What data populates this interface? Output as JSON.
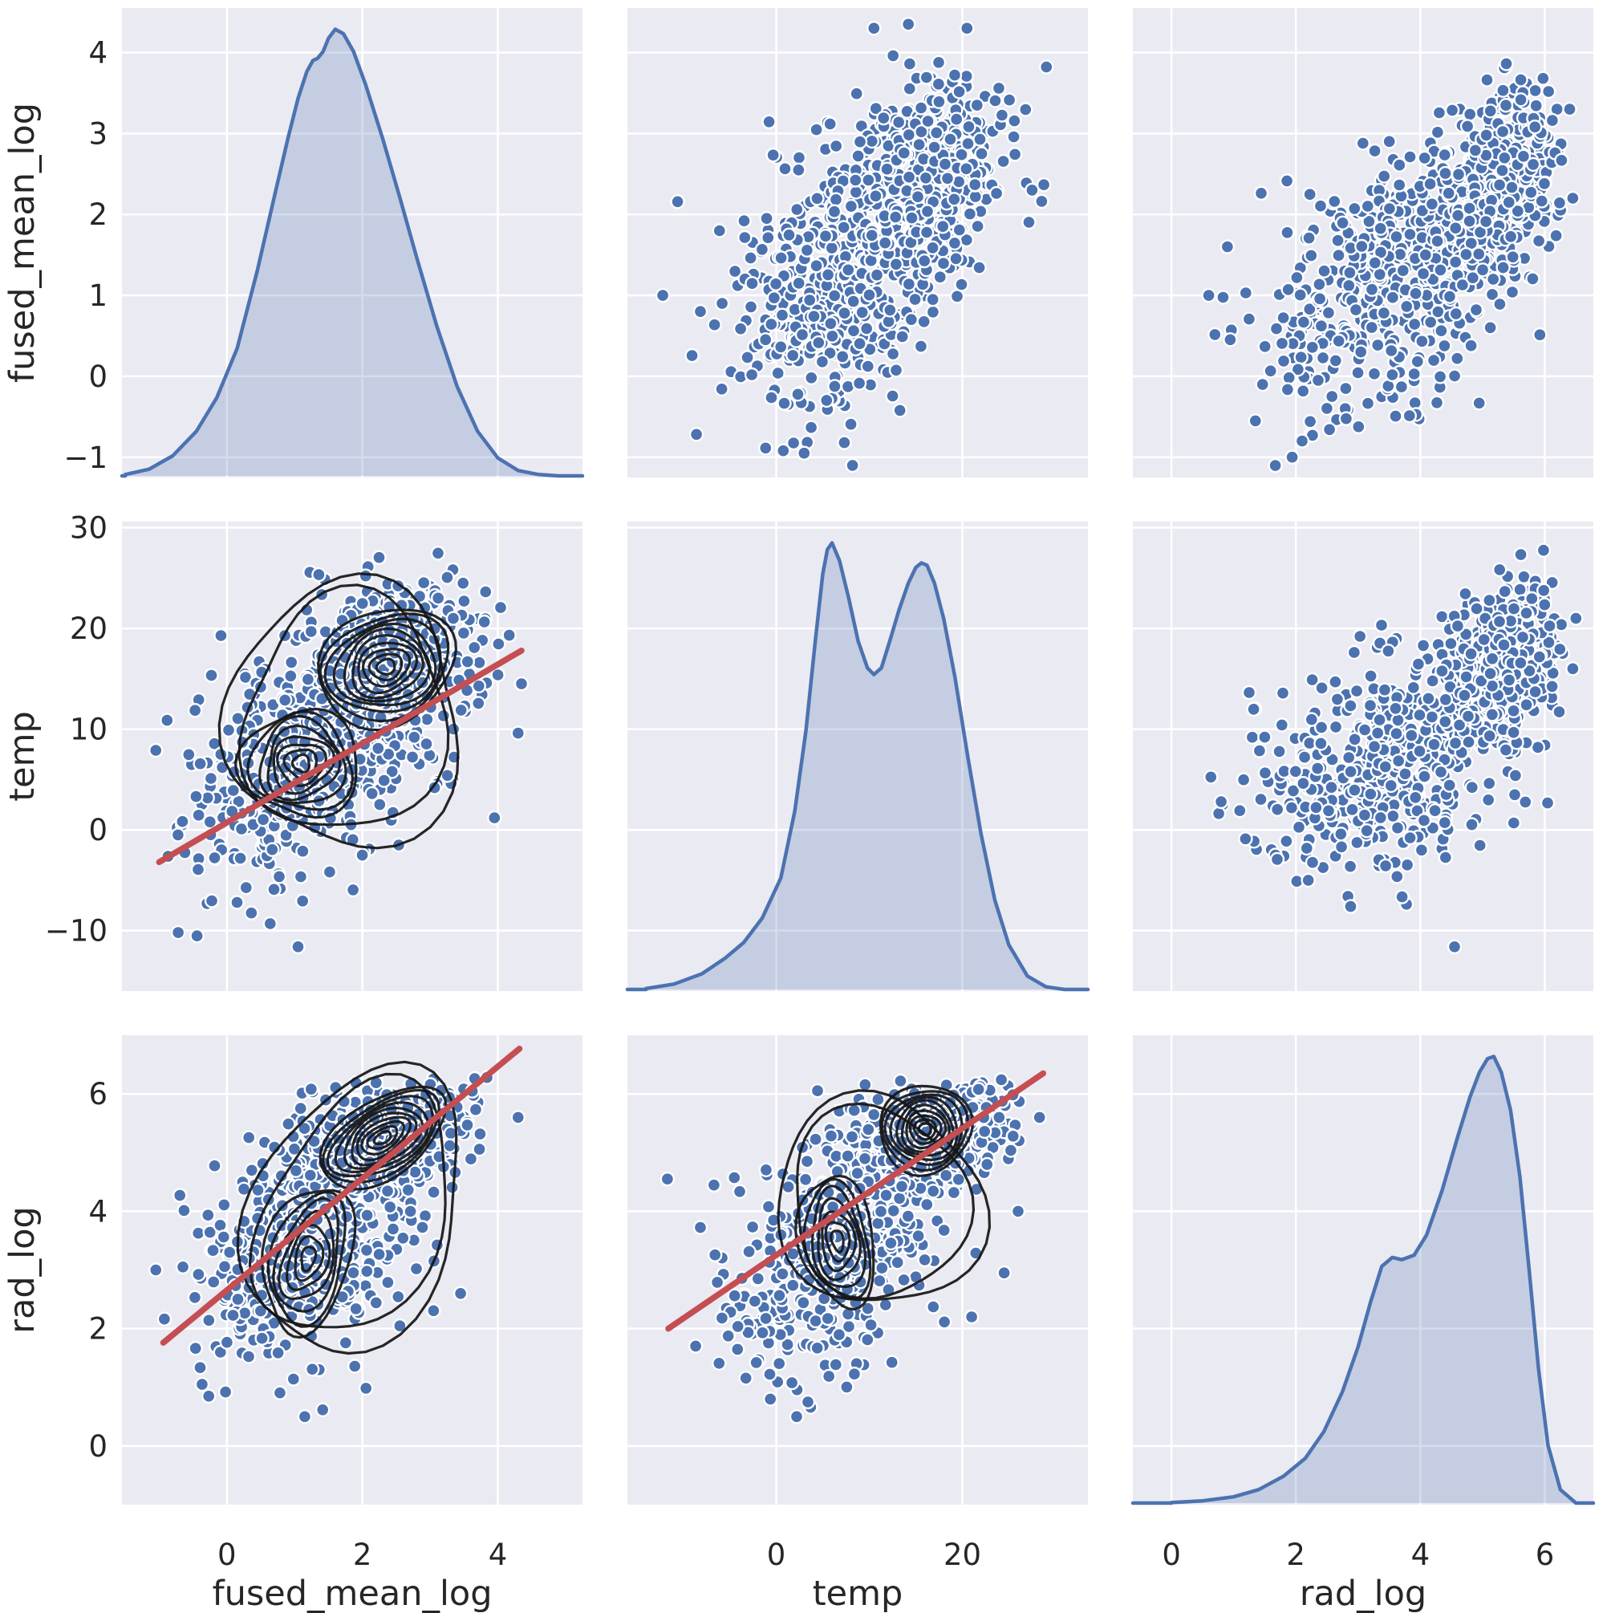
{
  "style": {
    "figure_background": "#ffffff",
    "panel_background": "#eaeaf2",
    "gridline_color": "#ffffff",
    "point_fill": "#4c72b0",
    "point_edge": "#ffffff",
    "kde_line_color": "#4c72b0",
    "kde_fill_color": "#4c72b0",
    "kde_fill_opacity": 0.24,
    "contour_color": "#151515",
    "regression_color": "#c44e52",
    "text_color": "#262626"
  },
  "chart_data": {
    "type": "scatter",
    "subtype": "seaborn-pairplot-matrix",
    "grid": "on",
    "legend": "none",
    "variables": [
      {
        "label": "fused_mean_log",
        "xlim": [
          -1.55,
          5.25
        ],
        "ylim": [
          -1.25,
          4.55
        ],
        "xtick_values": [
          0,
          2,
          4
        ],
        "xtick_labels": [
          "0",
          "2",
          "4"
        ],
        "ytick_values": [
          -1,
          0,
          1,
          2,
          3,
          4
        ],
        "ytick_labels": [
          "−1",
          "0",
          "1",
          "2",
          "3",
          "4"
        ],
        "clip": [
          -1.12,
          4.45
        ],
        "kde": {
          "x": [
            -1.5,
            -1.15,
            -0.8,
            -0.45,
            -0.15,
            0.15,
            0.45,
            0.7,
            0.9,
            1.05,
            1.18,
            1.27,
            1.34,
            1.42,
            1.5,
            1.6,
            1.72,
            1.87,
            2.05,
            2.3,
            2.55,
            2.8,
            3.1,
            3.4,
            3.7,
            4.0,
            4.3,
            4.6,
            4.9
          ],
          "density": [
            0.003,
            0.015,
            0.045,
            0.1,
            0.175,
            0.285,
            0.46,
            0.625,
            0.755,
            0.845,
            0.905,
            0.93,
            0.935,
            0.95,
            0.98,
            1.0,
            0.99,
            0.95,
            0.875,
            0.755,
            0.625,
            0.49,
            0.335,
            0.2,
            0.1,
            0.04,
            0.012,
            0.003,
            0.0
          ]
        }
      },
      {
        "label": "temp",
        "xlim": [
          -16.0,
          33.5
        ],
        "ylim": [
          -16.0,
          30.6
        ],
        "xtick_values": [
          0,
          20
        ],
        "xtick_labels": [
          "0",
          "20"
        ],
        "ytick_values": [
          -10,
          0,
          10,
          20,
          30
        ],
        "ytick_labels": [
          "−10",
          "0",
          "10",
          "20",
          "30"
        ],
        "clip": [
          -12.4,
          29.2
        ],
        "kde": {
          "x": [
            -14,
            -11,
            -8,
            -5.5,
            -3.5,
            -1.5,
            0.5,
            2,
            3.2,
            4.2,
            5,
            5.5,
            6,
            6.8,
            7.8,
            8.8,
            9.8,
            10.5,
            11.3,
            12.2,
            13.2,
            14.2,
            15,
            15.6,
            16.2,
            17,
            18,
            19.2,
            20.6,
            22,
            23.5,
            25,
            27,
            29,
            31
          ],
          "density": [
            0.002,
            0.012,
            0.035,
            0.07,
            0.105,
            0.16,
            0.25,
            0.4,
            0.58,
            0.78,
            0.93,
            0.985,
            1.0,
            0.96,
            0.875,
            0.78,
            0.72,
            0.705,
            0.72,
            0.78,
            0.85,
            0.91,
            0.945,
            0.955,
            0.95,
            0.91,
            0.83,
            0.7,
            0.52,
            0.35,
            0.2,
            0.1,
            0.03,
            0.006,
            0.0
          ]
        }
      },
      {
        "label": "rad_log",
        "xlim": [
          -0.62,
          6.78
        ],
        "ylim": [
          -1.0,
          7.0
        ],
        "xtick_values": [
          0,
          2,
          4,
          6
        ],
        "xtick_labels": [
          "0",
          "2",
          "4",
          "6"
        ],
        "ytick_values": [
          0,
          2,
          4,
          6
        ],
        "ytick_labels": [
          "0",
          "2",
          "4",
          "6"
        ],
        "clip": [
          0.45,
          6.3
        ],
        "kde": {
          "x": [
            0.0,
            0.5,
            1.0,
            1.4,
            1.8,
            2.15,
            2.45,
            2.75,
            3.0,
            3.2,
            3.38,
            3.55,
            3.7,
            3.9,
            4.1,
            4.35,
            4.6,
            4.8,
            4.95,
            5.08,
            5.18,
            5.3,
            5.45,
            5.6,
            5.75,
            5.9,
            6.05,
            6.25,
            6.5
          ],
          "density": [
            0.001,
            0.005,
            0.014,
            0.03,
            0.06,
            0.1,
            0.16,
            0.25,
            0.35,
            0.45,
            0.53,
            0.55,
            0.545,
            0.555,
            0.6,
            0.7,
            0.82,
            0.91,
            0.965,
            0.995,
            1.0,
            0.965,
            0.88,
            0.73,
            0.52,
            0.3,
            0.13,
            0.03,
            0.0
          ]
        }
      }
    ],
    "panels": [
      {
        "row": 0,
        "col": 0,
        "kind": "kde"
      },
      {
        "row": 0,
        "col": 1,
        "kind": "scatter",
        "clusters": [
          {
            "n": 460,
            "mean": [
              6.0,
              1.15
            ],
            "std": [
              5.6,
              0.8
            ],
            "corr": 0.25
          },
          {
            "n": 460,
            "mean": [
              15.8,
              2.4
            ],
            "std": [
              4.2,
              0.62
            ],
            "corr": 0.2
          }
        ],
        "outliers": [
          [
            -12.2,
            1.0
          ],
          [
            27.5,
            2.3
          ],
          [
            8.2,
            -1.1
          ],
          [
            3.0,
            -0.95
          ],
          [
            10.5,
            4.3
          ],
          [
            14.2,
            4.35
          ],
          [
            20.5,
            4.3
          ]
        ]
      },
      {
        "row": 0,
        "col": 2,
        "kind": "scatter",
        "clusters": [
          {
            "n": 460,
            "mean": [
              3.45,
              1.15
            ],
            "std": [
              1.0,
              0.8
            ],
            "corr": 0.35
          },
          {
            "n": 460,
            "mean": [
              5.2,
              2.4
            ],
            "std": [
              0.5,
              0.62
            ],
            "corr": 0.3
          }
        ],
        "outliers": [
          [
            0.6,
            1.0
          ],
          [
            1.35,
            -0.55
          ],
          [
            2.1,
            -0.8
          ],
          [
            6.45,
            2.2
          ],
          [
            6.4,
            3.3
          ],
          [
            0.9,
            1.6
          ]
        ]
      },
      {
        "row": 1,
        "col": 0,
        "kind": "scatter",
        "clusters": [
          {
            "n": 460,
            "mean": [
              1.15,
              6.0
            ],
            "std": [
              0.8,
              5.6
            ],
            "corr": 0.25
          },
          {
            "n": 460,
            "mean": [
              2.4,
              15.8
            ],
            "std": [
              0.62,
              4.2
            ],
            "corr": 0.2
          }
        ],
        "outliers": [
          [
            1.05,
            -11.6
          ],
          [
            -1.05,
            7.9
          ],
          [
            0.15,
            -7.2
          ],
          [
            3.95,
            1.2
          ],
          [
            4.3,
            9.6
          ],
          [
            4.35,
            14.5
          ]
        ],
        "contours": [
          {
            "center": [
              1.75,
              11.3
            ],
            "rx": 1.75,
            "ry": 13.0,
            "rot": 18,
            "rings": 2,
            "min_scale": 0.88,
            "wobble": 0.1
          },
          {
            "center": [
              2.35,
              16.2
            ],
            "rx": 1.05,
            "ry": 5.6,
            "rot": -20,
            "rings": 10,
            "min_scale": 0.13,
            "wobble": 0.06
          },
          {
            "center": [
              1.1,
              6.6
            ],
            "rx": 0.85,
            "ry": 5.4,
            "rot": -12,
            "rings": 8,
            "min_scale": 0.15,
            "wobble": 0.1
          }
        ],
        "regression": [
          [
            -1.0,
            -3.2
          ],
          [
            4.35,
            17.8
          ]
        ]
      },
      {
        "row": 1,
        "col": 1,
        "kind": "kde"
      },
      {
        "row": 1,
        "col": 2,
        "kind": "scatter",
        "clusters": [
          {
            "n": 460,
            "mean": [
              3.45,
              6.0
            ],
            "std": [
              1.0,
              5.6
            ],
            "corr": 0.3
          },
          {
            "n": 460,
            "mean": [
              5.2,
              15.8
            ],
            "std": [
              0.5,
              4.2
            ],
            "corr": 0.35
          }
        ],
        "outliers": [
          [
            4.55,
            -11.6
          ],
          [
            0.8,
            2.8
          ],
          [
            1.5,
            9.2
          ],
          [
            6.45,
            16.0
          ],
          [
            6.5,
            21.0
          ],
          [
            2.2,
            -5.0
          ]
        ]
      },
      {
        "row": 2,
        "col": 0,
        "kind": "scatter",
        "clusters": [
          {
            "n": 460,
            "mean": [
              1.15,
              3.45
            ],
            "std": [
              0.8,
              1.0
            ],
            "corr": 0.4
          },
          {
            "n": 460,
            "mean": [
              2.4,
              5.2
            ],
            "std": [
              0.62,
              0.5
            ],
            "corr": 0.3
          }
        ],
        "outliers": [
          [
            -0.02,
            0.92
          ],
          [
            1.15,
            0.5
          ],
          [
            -0.65,
            3.05
          ],
          [
            3.45,
            2.6
          ],
          [
            4.3,
            5.6
          ],
          [
            -1.05,
            3.0
          ]
        ],
        "contours": [
          {
            "center": [
              1.9,
              4.0
            ],
            "rx": 1.5,
            "ry": 2.5,
            "rot": 28,
            "rings": 2,
            "min_scale": 0.88,
            "wobble": 0.09
          },
          {
            "center": [
              2.3,
              5.25
            ],
            "rx": 1.05,
            "ry": 0.65,
            "rot": -32,
            "rings": 10,
            "min_scale": 0.13,
            "wobble": 0.05
          },
          {
            "center": [
              1.2,
              3.2
            ],
            "rx": 0.62,
            "ry": 1.3,
            "rot": 16,
            "rings": 7,
            "min_scale": 0.16,
            "wobble": 0.09
          }
        ],
        "regression": [
          [
            -0.94,
            1.76
          ],
          [
            4.32,
            6.77
          ]
        ]
      },
      {
        "row": 2,
        "col": 1,
        "kind": "scatter",
        "clusters": [
          {
            "n": 460,
            "mean": [
              6.0,
              3.45
            ],
            "std": [
              5.6,
              1.0
            ],
            "corr": 0.35
          },
          {
            "n": 460,
            "mean": [
              15.8,
              5.2
            ],
            "std": [
              4.2,
              0.5
            ],
            "corr": 0.4
          }
        ],
        "outliers": [
          [
            -11.7,
            4.55
          ],
          [
            2.2,
            0.5
          ],
          [
            3.4,
            0.75
          ],
          [
            28.3,
            5.6
          ],
          [
            24.5,
            2.95
          ],
          [
            21.0,
            2.2
          ],
          [
            26.0,
            4.0
          ]
        ],
        "contours": [
          {
            "center": [
              11.0,
              4.15
            ],
            "rx": 11.0,
            "ry": 1.8,
            "rot": -12,
            "rings": 2,
            "min_scale": 0.88,
            "wobble": 0.08
          },
          {
            "center": [
              16.0,
              5.4
            ],
            "rx": 5.0,
            "ry": 0.75,
            "rot": -8,
            "rings": 10,
            "min_scale": 0.13,
            "wobble": 0.05
          },
          {
            "center": [
              6.6,
              3.5
            ],
            "rx": 3.9,
            "ry": 1.15,
            "rot": -8,
            "rings": 7,
            "min_scale": 0.16,
            "wobble": 0.09
          }
        ],
        "regression": [
          [
            -11.6,
            2.0
          ],
          [
            28.7,
            6.35
          ]
        ]
      },
      {
        "row": 2,
        "col": 2,
        "kind": "kde"
      }
    ]
  }
}
